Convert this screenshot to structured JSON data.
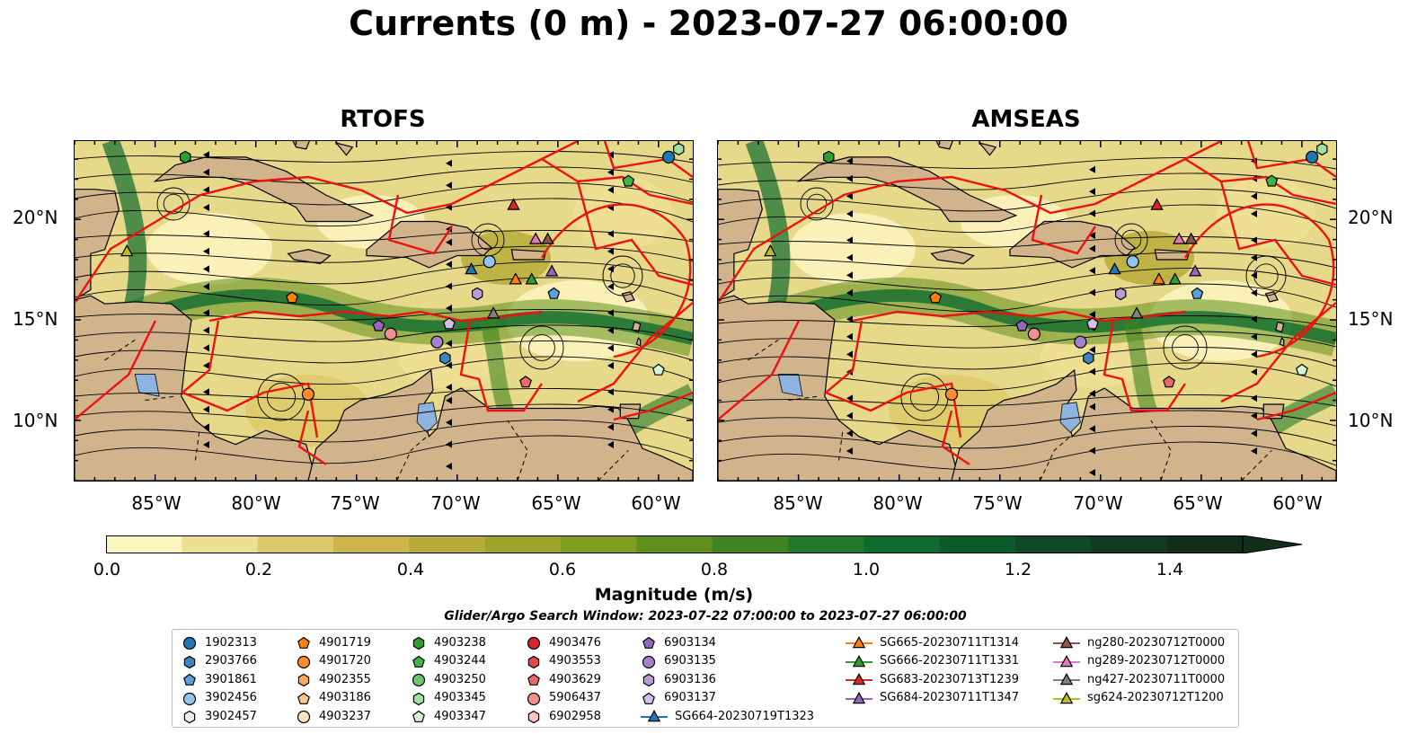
{
  "title": "Currents (0 m) - 2023-07-27 06:00:00",
  "panels": [
    {
      "title": "RTOFS",
      "land_left": false
    },
    {
      "title": "AMSEAS",
      "land_left": true
    }
  ],
  "lat_labels": [
    "20°N",
    "15°N",
    "10°N"
  ],
  "lon_labels": [
    "85°W",
    "80°W",
    "75°W",
    "70°W",
    "65°W",
    "60°W"
  ],
  "colorbar": {
    "label": "Magnitude (m/s)",
    "ticks": [
      "0.0",
      "0.2",
      "0.4",
      "0.6",
      "0.8",
      "1.0",
      "1.2",
      "1.4"
    ],
    "min": 0.0,
    "max": 1.5,
    "extend": "max",
    "colors": [
      "#fbf5c0",
      "#eedf94",
      "#dcc96a",
      "#cdb54c",
      "#b8ab3a",
      "#9ca52a",
      "#7f9d1e",
      "#5f8f1c",
      "#3f8420",
      "#217a2a",
      "#0f6b2e",
      "#0c5a2c",
      "#0e4826",
      "#123a22",
      "#142e1e"
    ]
  },
  "search_window": "Glider/Argo Search Window: 2023-07-22 07:00:00 to 2023-07-27 06:00:00",
  "legend": [
    {
      "label": "1902313",
      "marker": "circle",
      "color": "#1f77b4"
    },
    {
      "label": "2903766",
      "marker": "hexagon",
      "color": "#3a86c4"
    },
    {
      "label": "3901861",
      "marker": "pentagon",
      "color": "#5b9fdc"
    },
    {
      "label": "3902456",
      "marker": "circle",
      "color": "#8ec6f0"
    },
    {
      "label": "3902457",
      "marker": "hexagon",
      "color": "#e6f0fb"
    },
    {
      "label": "4901719",
      "marker": "pentagon",
      "color": "#ff7f0e"
    },
    {
      "label": "4901720",
      "marker": "circle",
      "color": "#ff8c2a"
    },
    {
      "label": "4902355",
      "marker": "hexagon",
      "color": "#ffa55a"
    },
    {
      "label": "4903186",
      "marker": "pentagon",
      "color": "#ffc48a"
    },
    {
      "label": "4903237",
      "marker": "circle",
      "color": "#ffe2c4"
    },
    {
      "label": "4903238",
      "marker": "hexagon",
      "color": "#2ca02c"
    },
    {
      "label": "4903244",
      "marker": "pentagon",
      "color": "#45b045"
    },
    {
      "label": "4903250",
      "marker": "circle",
      "color": "#6cc56c"
    },
    {
      "label": "4903345",
      "marker": "hexagon",
      "color": "#9ee29e"
    },
    {
      "label": "4903347",
      "marker": "pentagon",
      "color": "#d2f5d2"
    },
    {
      "label": "4903476",
      "marker": "circle",
      "color": "#d62728"
    },
    {
      "label": "4903553",
      "marker": "hexagon",
      "color": "#e04a4a"
    },
    {
      "label": "4903629",
      "marker": "pentagon",
      "color": "#e86a6a"
    },
    {
      "label": "5906437",
      "marker": "circle",
      "color": "#f09090"
    },
    {
      "label": "6902958",
      "marker": "hexagon",
      "color": "#f8c4c4"
    },
    {
      "label": "6903134",
      "marker": "pentagon",
      "color": "#9467bd"
    },
    {
      "label": "6903135",
      "marker": "circle",
      "color": "#a77fcc"
    },
    {
      "label": "6903136",
      "marker": "hexagon",
      "color": "#bb9ad8"
    },
    {
      "label": "6903137",
      "marker": "pentagon",
      "color": "#d3bfe8"
    },
    {
      "label": "SG664-20230719T1323",
      "marker": "triangle-line",
      "color": "#1f77b4"
    },
    {
      "label": "SG665-20230711T1314",
      "marker": "triangle-line",
      "color": "#ff7f0e"
    },
    {
      "label": "SG666-20230711T1331",
      "marker": "triangle-line",
      "color": "#2ca02c"
    },
    {
      "label": "SG683-20230713T1239",
      "marker": "triangle-line",
      "color": "#d62728"
    },
    {
      "label": "SG684-20230711T1347",
      "marker": "triangle-line",
      "color": "#9467bd"
    },
    {
      "label": "ng280-20230712T0000",
      "marker": "triangle-line",
      "color": "#8c564b"
    },
    {
      "label": "ng289-20230712T0000",
      "marker": "triangle-line",
      "color": "#e377c2"
    },
    {
      "label": "ng427-20230711T0000",
      "marker": "triangle-line",
      "color": "#7f7f7f"
    },
    {
      "label": "sg624-20230712T1200",
      "marker": "triangle-line",
      "color": "#bcbd22"
    }
  ],
  "map_markers": [
    {
      "id": "1902313",
      "lon": -59.5,
      "lat": 23.1,
      "marker": "circle",
      "color": "#1f77b4"
    },
    {
      "id": "4903345",
      "lon": -59.0,
      "lat": 23.5,
      "marker": "hexagon",
      "color": "#9ee29e"
    },
    {
      "id": "4903238",
      "lon": -83.5,
      "lat": 23.1,
      "marker": "hexagon",
      "color": "#2ca02c"
    },
    {
      "id": "4903244",
      "lon": -61.5,
      "lat": 21.9,
      "marker": "pentagon",
      "color": "#45b045"
    },
    {
      "id": "SG683-20230713T1239",
      "lon": -67.2,
      "lat": 20.7,
      "marker": "triangle",
      "color": "#d62728"
    },
    {
      "id": "ng289-20230712T0000",
      "lon": -66.1,
      "lat": 19.0,
      "marker": "triangle",
      "color": "#e377c2"
    },
    {
      "id": "ng280-20230712T0000",
      "lon": -65.5,
      "lat": 19.0,
      "marker": "triangle",
      "color": "#8c564b"
    },
    {
      "id": "sg624-20230712T1200",
      "lon": -86.4,
      "lat": 18.4,
      "marker": "triangle",
      "color": "#bcbd22"
    },
    {
      "id": "3902456",
      "lon": -68.4,
      "lat": 17.9,
      "marker": "circle",
      "color": "#8ec6f0"
    },
    {
      "id": "SG664-20230719T1323",
      "lon": -69.3,
      "lat": 17.5,
      "marker": "triangle",
      "color": "#1f77b4"
    },
    {
      "id": "SG684-20230711T1347",
      "lon": -65.3,
      "lat": 17.4,
      "marker": "triangle",
      "color": "#9467bd"
    },
    {
      "id": "SG665-20230711T1314",
      "lon": -67.1,
      "lat": 17.0,
      "marker": "triangle",
      "color": "#ff7f0e"
    },
    {
      "id": "SG666-20230711T1331",
      "lon": -66.3,
      "lat": 17.0,
      "marker": "triangle",
      "color": "#2ca02c"
    },
    {
      "id": "4901719",
      "lon": -78.2,
      "lat": 16.1,
      "marker": "pentagon",
      "color": "#ff7f0e"
    },
    {
      "id": "3901861",
      "lon": -65.2,
      "lat": 16.3,
      "marker": "pentagon",
      "color": "#5b9fdc"
    },
    {
      "id": "6903136",
      "lon": -69.0,
      "lat": 16.3,
      "marker": "hexagon",
      "color": "#bb9ad8"
    },
    {
      "id": "ng427-20230711T0000",
      "lon": -68.2,
      "lat": 15.3,
      "marker": "triangle",
      "color": "#7f7f7f"
    },
    {
      "id": "6903134",
      "lon": -73.9,
      "lat": 14.7,
      "marker": "pentagon",
      "color": "#9467bd"
    },
    {
      "id": "6903137",
      "lon": -70.4,
      "lat": 14.8,
      "marker": "pentagon",
      "color": "#d3bfe8"
    },
    {
      "id": "5906437",
      "lon": -73.3,
      "lat": 14.3,
      "marker": "circle",
      "color": "#f09090"
    },
    {
      "id": "6903135",
      "lon": -71.0,
      "lat": 13.9,
      "marker": "circle",
      "color": "#a77fcc"
    },
    {
      "id": "2903766",
      "lon": -70.6,
      "lat": 13.1,
      "marker": "hexagon",
      "color": "#3a86c4"
    },
    {
      "id": "4903347",
      "lon": -60.0,
      "lat": 12.5,
      "marker": "pentagon",
      "color": "#d2f5d2"
    },
    {
      "id": "4903629",
      "lon": -66.6,
      "lat": 11.9,
      "marker": "pentagon",
      "color": "#e86a6a"
    },
    {
      "id": "4901720",
      "lon": -77.4,
      "lat": 11.3,
      "marker": "circle",
      "color": "#ff8c2a"
    }
  ]
}
